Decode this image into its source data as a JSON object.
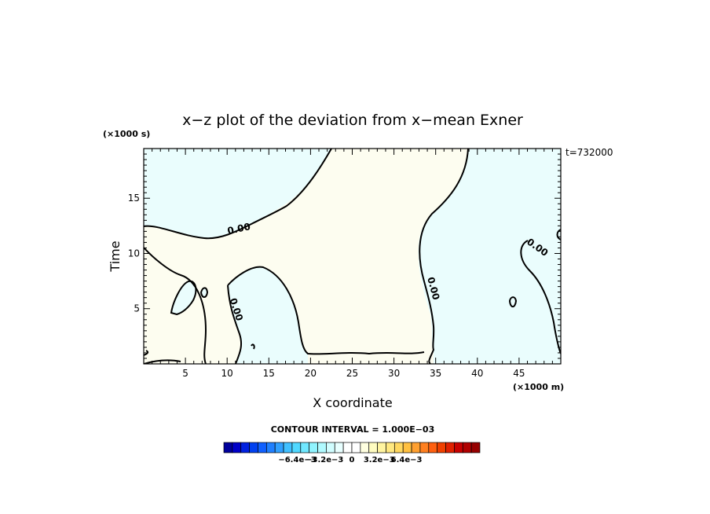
{
  "chart_data": {
    "type": "contour",
    "title": "x−z plot of the deviation from x−mean Exner",
    "xlabel": "X coordinate",
    "ylabel": "Time",
    "x_unit": "(×1000 m)",
    "y_unit": "(×1000 s)",
    "time_stamp": "t=732000",
    "xlim": [
      0,
      50
    ],
    "ylim": [
      0,
      19.5
    ],
    "x_ticks": [
      5,
      10,
      15,
      20,
      25,
      30,
      35,
      40,
      45
    ],
    "y_ticks": [
      5,
      10,
      15
    ],
    "contour_label": "0.00",
    "contour_interval_text": "CONTOUR INTERVAL = 1.000E−03",
    "regions": [
      {
        "sign": "negative",
        "color": "#eafdfd"
      },
      {
        "sign": "positive",
        "color": "#fdfdf0"
      }
    ],
    "colorbar": {
      "tick_labels": [
        "−6.4e−3",
        "−3.2e−3",
        "0",
        "3.2e−3",
        "6.4e−3"
      ],
      "tick_values": [
        -0.0064,
        -0.0032,
        0,
        0.0032,
        0.0064
      ],
      "colors": [
        "#00009c",
        "#0000c8",
        "#0020e0",
        "#0040f0",
        "#1060ff",
        "#2080ff",
        "#30a0ff",
        "#40c0ff",
        "#50d8ff",
        "#70e8ff",
        "#90f4ff",
        "#b0faff",
        "#d0fdff",
        "#e8ffff",
        "#ffffff",
        "#ffffff",
        "#ffffe0",
        "#fffcc0",
        "#fff4a0",
        "#ffe880",
        "#ffd860",
        "#ffc040",
        "#ffa030",
        "#ff8020",
        "#ff6010",
        "#f04000",
        "#e02000",
        "#c80000",
        "#b00000",
        "#960000"
      ]
    }
  }
}
